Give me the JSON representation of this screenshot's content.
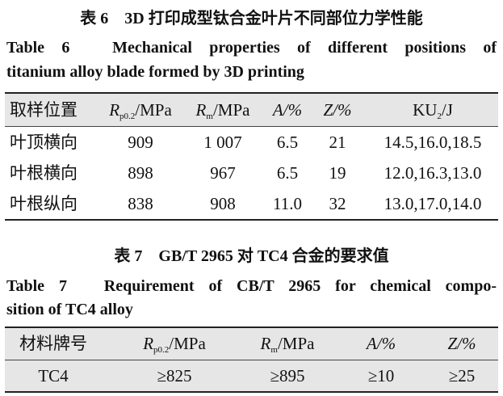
{
  "table6": {
    "caption_cn": "表 6　3D 打印成型钛合金叶片不同部位力学性能",
    "caption_en_line1": "Table 6　Mechanical properties of different positions of",
    "caption_en_line2": "titanium alloy blade formed by 3D printing",
    "headers": [
      "取样位置",
      "R",
      "p0.2",
      "/MPa",
      "R",
      "m",
      "/MPa",
      "A",
      "/%",
      "Z",
      "/%",
      "KU",
      "2",
      "/J"
    ],
    "rows": [
      [
        "叶顶横向",
        "909",
        "1 007",
        "6.5",
        "21",
        "14.5,16.0,18.5"
      ],
      [
        "叶根横向",
        "898",
        "967",
        "6.5",
        "19",
        "12.0,16.3,13.0"
      ],
      [
        "叶根纵向",
        "838",
        "908",
        "11.0",
        "32",
        "13.0,17.0,14.0"
      ]
    ]
  },
  "table7": {
    "caption_cn": "表 7　GB/T 2965 对 TC4 合金的要求值",
    "caption_en_line1": "Table 7　Requirement of CB/T 2965 for chemical compo-",
    "caption_en_line2": "sition of TC4 alloy",
    "headers": [
      "材料牌号",
      "R",
      "p0.2",
      "/MPa",
      "R",
      "m",
      "/MPa",
      "A",
      "/%",
      "Z",
      "/%"
    ],
    "rows": [
      [
        "TC4",
        "≥825",
        "≥895",
        "≥10",
        "≥25"
      ]
    ]
  },
  "colors": {
    "header_bg": "#e6e6e6"
  }
}
